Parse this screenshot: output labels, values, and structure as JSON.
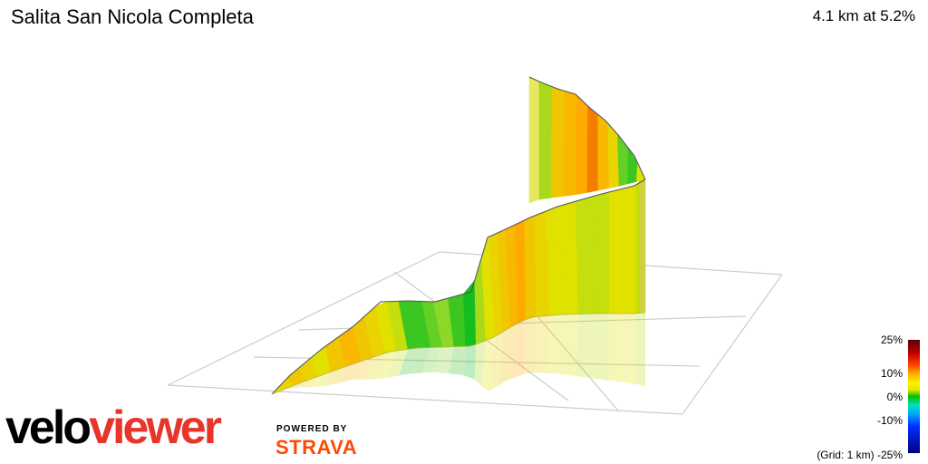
{
  "header": {
    "title": "Salita San Nicola Completa",
    "summary": "4.1 km at 5.2%"
  },
  "branding": {
    "velo": "velo",
    "viewer": "viewer",
    "powered_by": "POWERED BY",
    "strava": "STRAVA"
  },
  "legend": {
    "ticks": [
      "25%",
      "10%",
      "0%",
      "-10%"
    ],
    "bottom": "(Grid: 1 km) -25%"
  },
  "colors": {
    "grid": "#cccccc",
    "outline": "#555555",
    "brand_red": "#e7352b",
    "strava_orange": "#fc4c02"
  },
  "chart_data": {
    "type": "area",
    "grid_km": 1,
    "color_scale_ticks_pct": [
      25,
      10,
      0,
      -10,
      -25
    ],
    "profile_front": {
      "x_km": [
        0.0,
        0.1,
        0.2,
        0.3,
        0.4,
        0.5,
        0.6,
        0.7,
        0.8,
        0.9,
        1.0,
        1.1,
        1.2,
        1.3,
        1.4,
        1.5,
        1.6,
        1.7,
        1.8,
        1.9,
        2.0,
        2.1,
        2.2,
        2.3,
        2.4,
        2.5,
        2.6,
        2.7,
        2.8,
        2.9,
        3.0,
        3.1,
        3.2
      ],
      "gradient_pct": [
        6,
        7,
        8,
        7,
        6,
        8,
        9,
        8,
        7,
        6,
        5,
        1,
        1,
        2,
        3,
        1,
        0,
        4,
        6,
        7,
        8,
        9,
        10,
        8,
        7,
        6,
        6,
        5,
        5,
        6,
        6,
        5,
        5
      ]
    },
    "profile_back": {
      "x_km": [
        3.2,
        3.3,
        3.4,
        3.5,
        3.6,
        3.7,
        3.8,
        3.9,
        4.0,
        4.1
      ],
      "gradient_pct": [
        4,
        8,
        9,
        10,
        12,
        9,
        7,
        2,
        1,
        6
      ]
    }
  }
}
